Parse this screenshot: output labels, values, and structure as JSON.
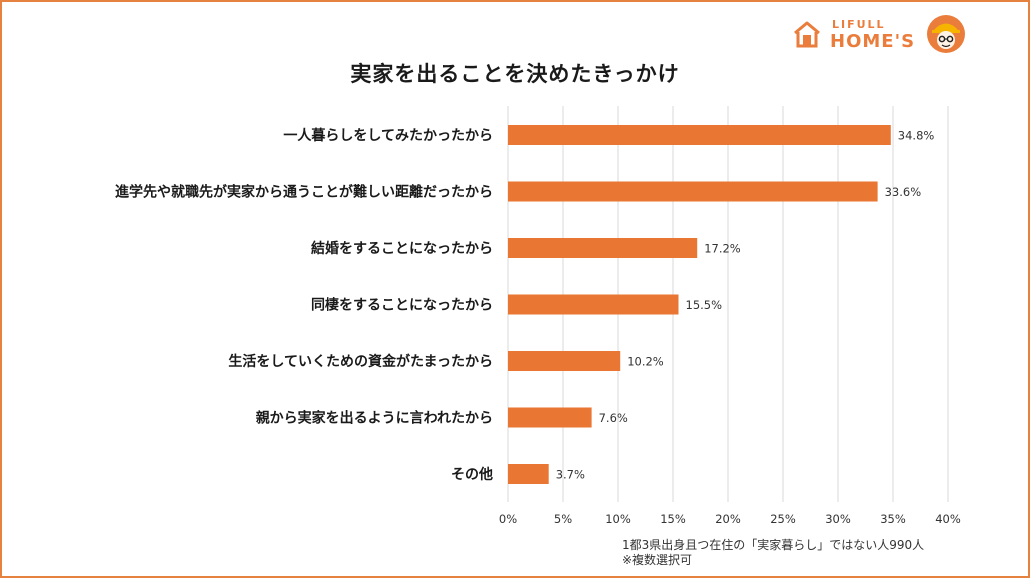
{
  "brand": {
    "top": "LIFULL",
    "main": "HOME'S"
  },
  "colors": {
    "accent": "#ea7d3c",
    "bar": "#e97632",
    "grid": "#d9d9d9",
    "frame": "#e5823f"
  },
  "chart_data": {
    "type": "bar",
    "orientation": "horizontal",
    "title": "実家を出ることを決めたきっかけ",
    "categories": [
      "一人暮らしをしてみたかったから",
      "進学先や就職先が実家から通うことが難しい距離だったから",
      "結婚をすることになったから",
      "同棲をすることになったから",
      "生活をしていくための資金がたまったから",
      "親から実家を出るように言われたから",
      "その他"
    ],
    "values": [
      34.8,
      33.6,
      17.2,
      15.5,
      10.2,
      7.6,
      3.7
    ],
    "value_labels": [
      "34.8%",
      "33.6%",
      "17.2%",
      "15.5%",
      "10.2%",
      "7.6%",
      "3.7%"
    ],
    "xlim": [
      0,
      40
    ],
    "xticks": [
      0,
      5,
      10,
      15,
      20,
      25,
      30,
      35,
      40
    ],
    "xtick_labels": [
      "0%",
      "5%",
      "10%",
      "15%",
      "20%",
      "25%",
      "30%",
      "35%",
      "40%"
    ],
    "grid": true
  },
  "footnote": {
    "line1": "1都3県出身且つ在住の「実家暮らし」ではない人990人",
    "line2": "※複数選択可"
  }
}
